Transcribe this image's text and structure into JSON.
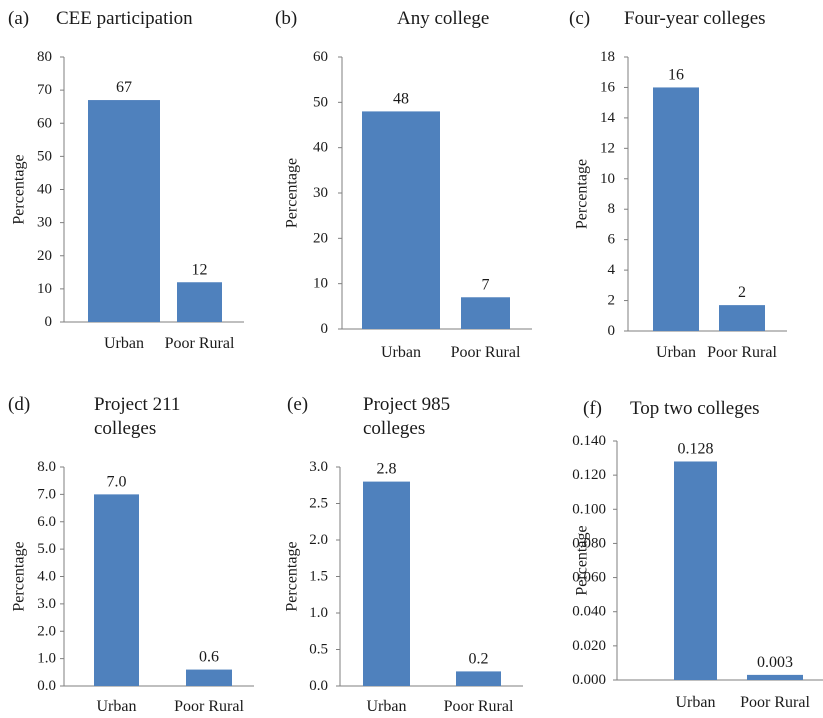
{
  "chart_data": [
    {
      "type": "bar",
      "panel_label": "(a)",
      "title": [
        "CEE participation"
      ],
      "categories": [
        "Urban",
        "Poor Rural"
      ],
      "values": [
        67,
        12
      ],
      "data_labels": [
        "67",
        "12"
      ],
      "ylabel": "Percentage",
      "ylim": [
        0,
        80
      ],
      "yticks": [
        "0",
        "10",
        "20",
        "30",
        "40",
        "50",
        "60",
        "70",
        "80"
      ],
      "grid": false,
      "bar_color": "#4f81bd"
    },
    {
      "type": "bar",
      "panel_label": "(b)",
      "title": [
        "Any college"
      ],
      "categories": [
        "Urban",
        "Poor Rural"
      ],
      "values": [
        48,
        7
      ],
      "data_labels": [
        "48",
        "7"
      ],
      "ylabel": "Percentage",
      "ylim": [
        0,
        60
      ],
      "yticks": [
        "0",
        "10",
        "20",
        "30",
        "40",
        "50",
        "60"
      ],
      "grid": false,
      "bar_color": "#4f81bd"
    },
    {
      "type": "bar",
      "panel_label": "(c)",
      "title": [
        "Four-year colleges"
      ],
      "categories": [
        "Urban",
        "Poor Rural"
      ],
      "values": [
        16,
        1.7
      ],
      "data_labels": [
        "16",
        "2"
      ],
      "ylabel": "Percentage",
      "ylim": [
        0,
        18
      ],
      "yticks": [
        "0",
        "2",
        "4",
        "6",
        "8",
        "10",
        "12",
        "14",
        "16",
        "18"
      ],
      "grid": false,
      "bar_color": "#4f81bd"
    },
    {
      "type": "bar",
      "panel_label": "(d)",
      "title": [
        "Project 211",
        "colleges"
      ],
      "categories": [
        "Urban",
        "Poor Rural"
      ],
      "values": [
        7.0,
        0.6
      ],
      "data_labels": [
        "7.0",
        "0.6"
      ],
      "ylabel": "Percentage",
      "ylim": [
        0,
        8
      ],
      "yticks": [
        "0.0",
        "1.0",
        "2.0",
        "3.0",
        "4.0",
        "5.0",
        "6.0",
        "7.0",
        "8.0"
      ],
      "grid": false,
      "bar_color": "#4f81bd"
    },
    {
      "type": "bar",
      "panel_label": "(e)",
      "title": [
        "Project 985",
        "colleges"
      ],
      "categories": [
        "Urban",
        "Poor Rural"
      ],
      "values": [
        2.8,
        0.2
      ],
      "data_labels": [
        "2.8",
        "0.2"
      ],
      "ylabel": "Percentage",
      "ylim": [
        0,
        3
      ],
      "yticks": [
        "0.0",
        "0.5",
        "1.0",
        "1.5",
        "2.0",
        "2.5",
        "3.0"
      ],
      "grid": false,
      "bar_color": "#4f81bd"
    },
    {
      "type": "bar",
      "panel_label": "(f)",
      "title": [
        "Top two colleges"
      ],
      "categories": [
        "Urban",
        "Poor Rural"
      ],
      "values": [
        0.128,
        0.003
      ],
      "data_labels": [
        "0.128",
        "0.003"
      ],
      "ylabel": "Percentage",
      "ylim": [
        0,
        0.14
      ],
      "yticks": [
        "0.000",
        "0.020",
        "0.040",
        "0.060",
        "0.080",
        "0.100",
        "0.120",
        "0.140"
      ],
      "grid": false,
      "bar_color": "#4f81bd"
    }
  ]
}
